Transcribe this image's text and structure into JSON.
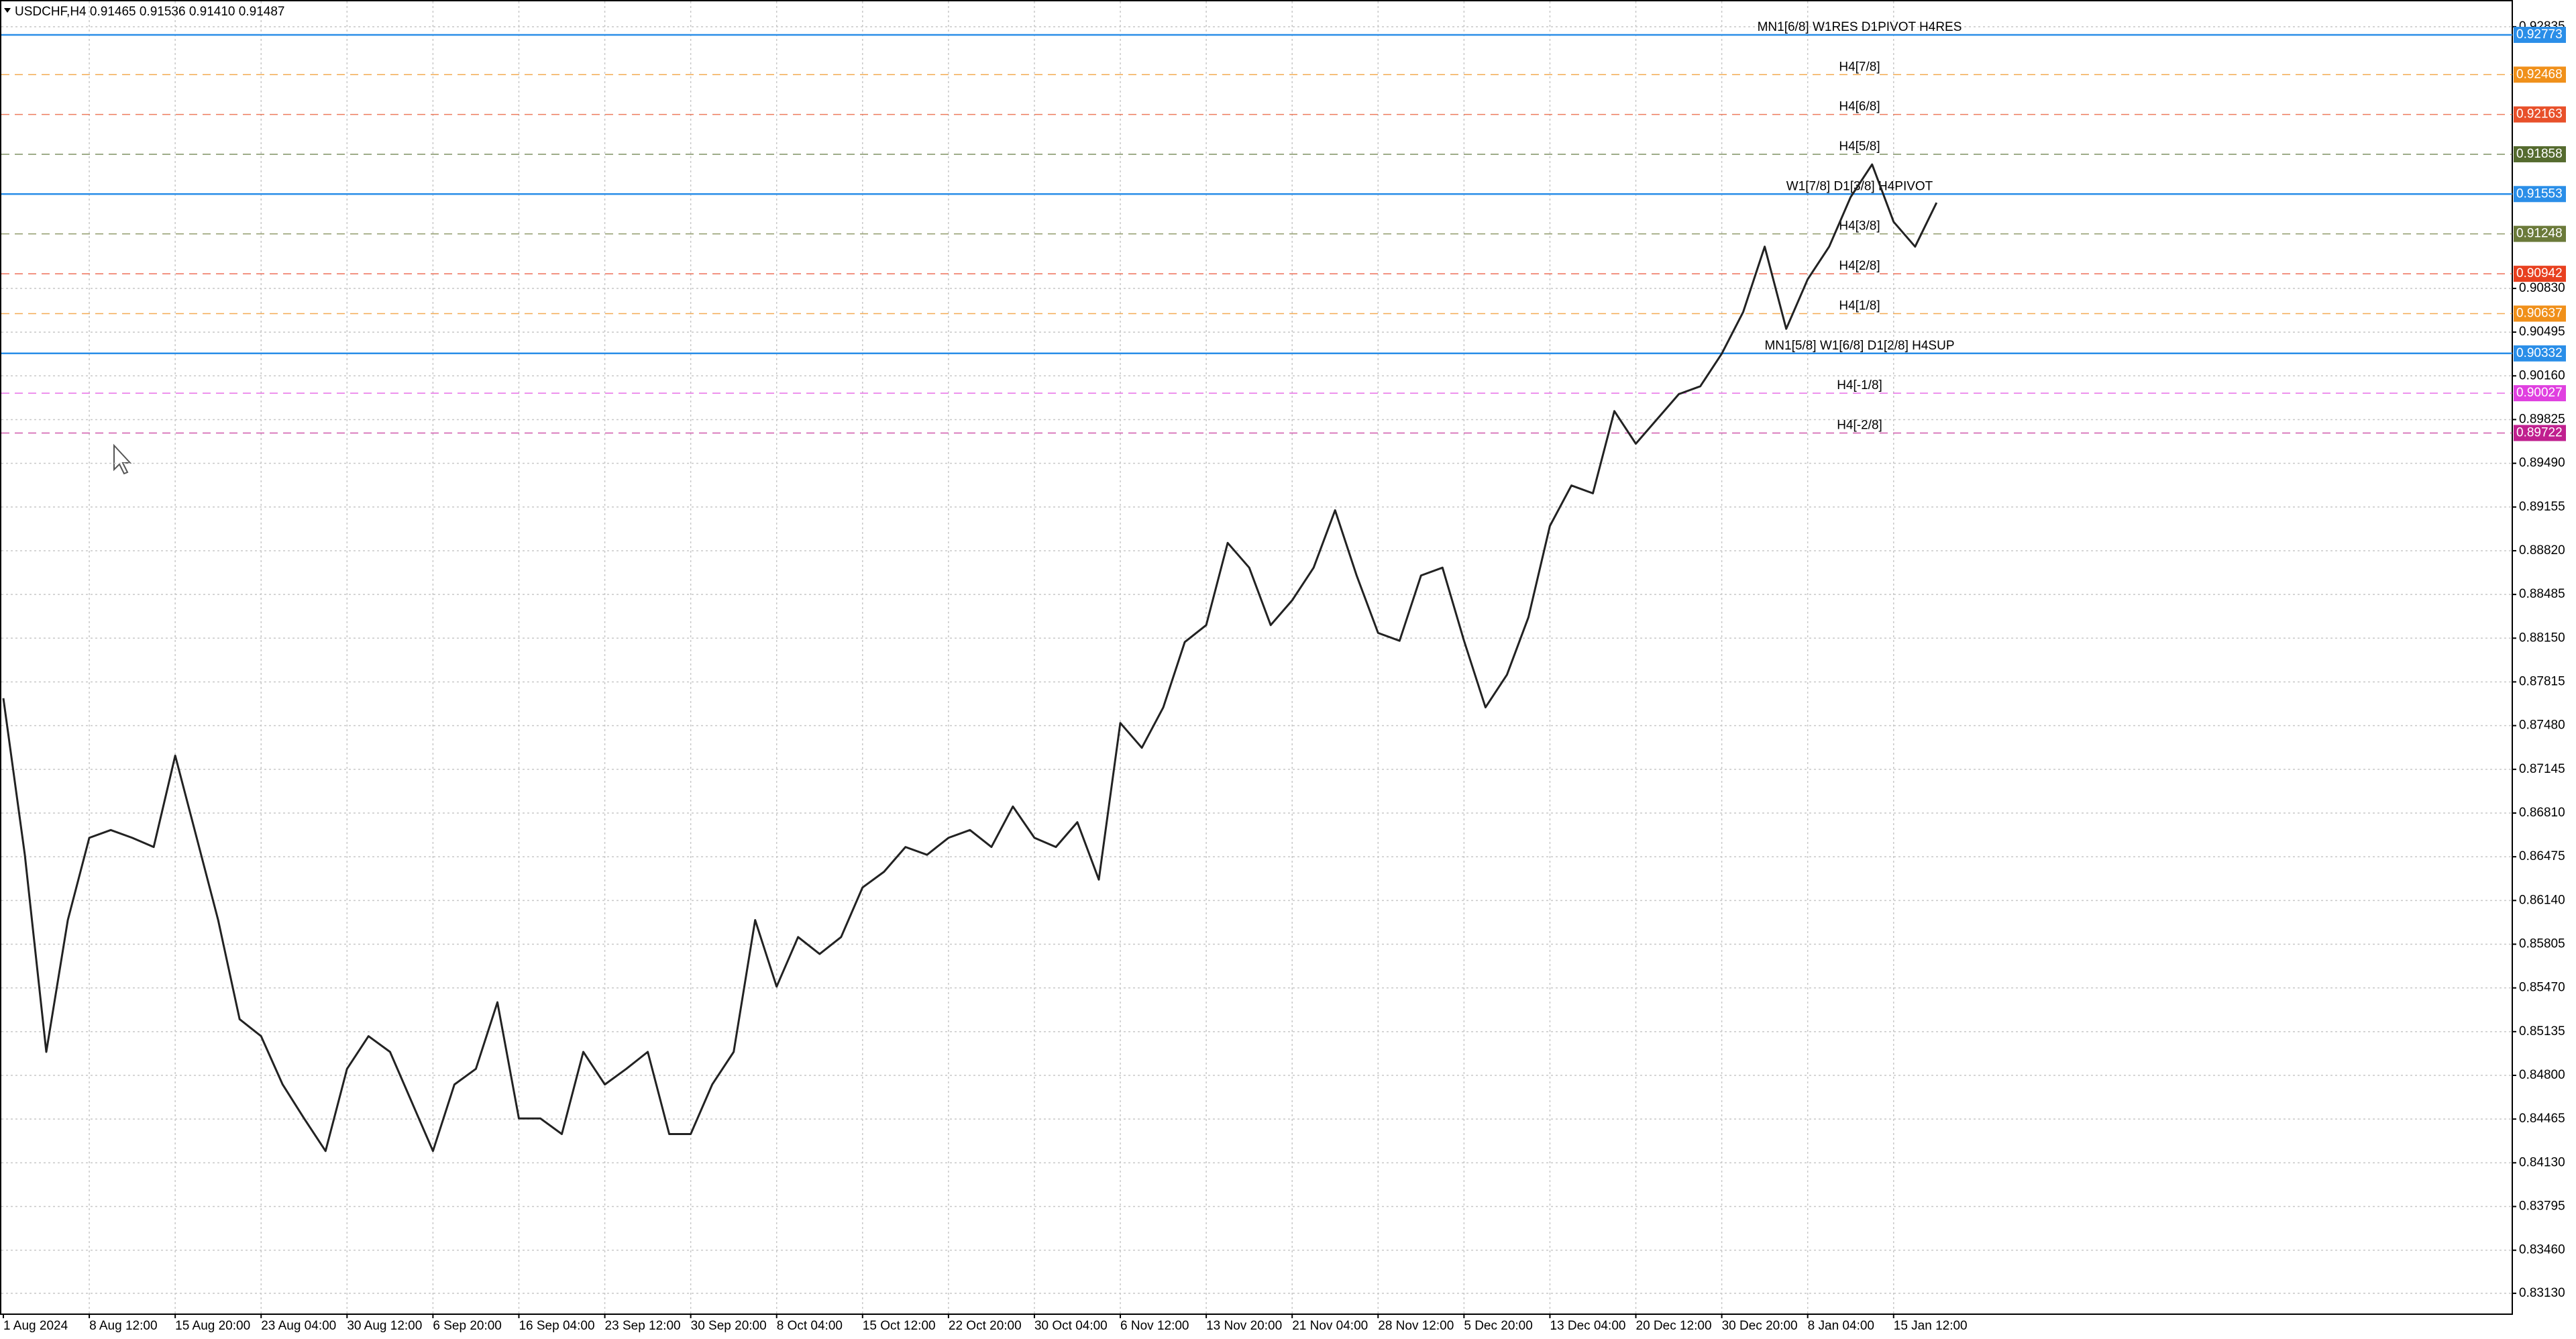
{
  "chart_data": {
    "type": "line",
    "title": "USDCHF,H4  0.91465 0.91536 0.91410 0.91487",
    "color": "#222222",
    "grid": true,
    "categories": [
      "1 Aug 2024",
      null,
      null,
      null,
      "8 Aug 12:00",
      null,
      null,
      null,
      "15 Aug 20:00",
      null,
      null,
      null,
      "23 Aug 04:00",
      null,
      null,
      null,
      "30 Aug 12:00",
      null,
      null,
      null,
      "6 Sep 20:00",
      null,
      null,
      null,
      "16 Sep 04:00",
      null,
      null,
      null,
      "23 Sep 12:00",
      null,
      null,
      null,
      "30 Sep 20:00",
      null,
      null,
      null,
      "8 Oct 04:00",
      null,
      null,
      null,
      "15 Oct 12:00",
      null,
      null,
      null,
      "22 Oct 20:00",
      null,
      null,
      null,
      "30 Oct 04:00",
      null,
      null,
      null,
      "6 Nov 12:00",
      null,
      null,
      null,
      "13 Nov 20:00",
      null,
      null,
      null,
      "21 Nov 04:00",
      null,
      null,
      null,
      "28 Nov 12:00",
      null,
      null,
      null,
      "5 Dec 20:00",
      null,
      null,
      null,
      "13 Dec 04:00",
      null,
      null,
      null,
      "20 Dec 12:00",
      null,
      null,
      null,
      "30 Dec 20:00",
      null,
      null,
      null,
      "8 Jan 04:00",
      null,
      null,
      null,
      "15 Jan 12:00",
      null,
      null
    ],
    "values": [
      0.8769,
      0.8649,
      0.8498,
      0.8599,
      0.8662,
      0.8668,
      0.8662,
      0.8655,
      0.8725,
      0.8662,
      0.8599,
      0.8523,
      0.851,
      0.8473,
      0.8447,
      0.8422,
      0.8485,
      0.851,
      0.8498,
      0.846,
      0.8422,
      0.8473,
      0.8485,
      0.8536,
      0.8447,
      0.8447,
      0.8435,
      0.8498,
      0.8473,
      0.8485,
      0.8498,
      0.8435,
      0.8435,
      0.8473,
      0.8498,
      0.8599,
      0.8548,
      0.8586,
      0.8573,
      0.8586,
      0.8624,
      0.8636,
      0.8655,
      0.8649,
      0.8662,
      0.8668,
      0.8655,
      0.8686,
      0.8662,
      0.8655,
      0.8674,
      0.863,
      0.875,
      0.8731,
      0.8762,
      0.8812,
      0.8825,
      0.8888,
      0.8869,
      0.8825,
      0.8844,
      0.8869,
      0.8913,
      0.8863,
      0.8819,
      0.8813,
      0.8863,
      0.8869,
      0.8813,
      0.8762,
      0.8787,
      0.8831,
      0.8901,
      0.8932,
      0.8926,
      0.8989,
      0.8964,
      0.8983,
      0.9002,
      0.9008,
      0.9033,
      0.9065,
      0.9115,
      0.9052,
      0.909,
      0.9115,
      0.9153,
      0.9178,
      0.9134,
      0.9115,
      0.91487
    ],
    "ylim": [
      0.8297,
      0.9304
    ],
    "yticks": [
      0.92835,
      {
        "value": 0.9083,
        "label": "0.90830"
      },
      0.90495,
      {
        "value": 0.9016,
        "label": "0.90160"
      },
      0.89825,
      {
        "value": 0.8949,
        "label": "0.89490"
      },
      0.89155,
      {
        "value": 0.8882,
        "label": "0.88820"
      },
      0.88485,
      {
        "value": 0.8815,
        "label": "0.88150"
      },
      0.87815,
      {
        "value": 0.8748,
        "label": "0.87480"
      },
      0.87145,
      {
        "value": 0.8681,
        "label": "0.86810"
      },
      0.86475,
      {
        "value": 0.8614,
        "label": "0.86140"
      },
      0.85805,
      {
        "value": 0.8547,
        "label": "0.85470"
      },
      0.85135,
      {
        "value": 0.848,
        "label": "0.84800"
      },
      0.84465,
      {
        "value": 0.8413,
        "label": "0.84130"
      },
      0.83795,
      {
        "value": 0.8346,
        "label": "0.83460"
      },
      {
        "value": 0.8313,
        "label": "0.83130"
      }
    ],
    "levels": [
      {
        "name": "MN1[6/8] W1RES D1PIVOT H4RES",
        "value": 0.92773,
        "color": "#2a8ee8",
        "style": "solid"
      },
      {
        "name": "H4[7/8]",
        "value": 0.92468,
        "color": "#f0901a",
        "style": "dashed"
      },
      {
        "name": "H4[6/8]",
        "value": 0.92163,
        "color": "#e8502a",
        "style": "dashed"
      },
      {
        "name": "H4[5/8]",
        "value": 0.91858,
        "color": "#556b2f",
        "style": "dashed"
      },
      {
        "name": "W1[7/8] D1[3/8] H4PIVOT",
        "value": 0.91553,
        "color": "#2a8ee8",
        "style": "solid"
      },
      {
        "name": "H4[3/8]",
        "value": 0.91248,
        "color": "#6b7a3a",
        "style": "dashed"
      },
      {
        "name": "H4[2/8]",
        "value": 0.90942,
        "color": "#e8401f",
        "style": "dashed"
      },
      {
        "name": "H4[1/8]",
        "value": 0.90637,
        "color": "#f0901a",
        "style": "dashed"
      },
      {
        "name": "MN1[5/8] W1[6/8] D1[2/8] H4SUP",
        "value": 0.90332,
        "color": "#2a8ee8",
        "style": "solid"
      },
      {
        "name": "H4[-1/8]",
        "value": 0.90027,
        "color": "#e040e0",
        "style": "dashed"
      },
      {
        "name": "H4[-2/8]",
        "value": 0.89722,
        "color": "#c0208f",
        "style": "dashed"
      }
    ]
  }
}
